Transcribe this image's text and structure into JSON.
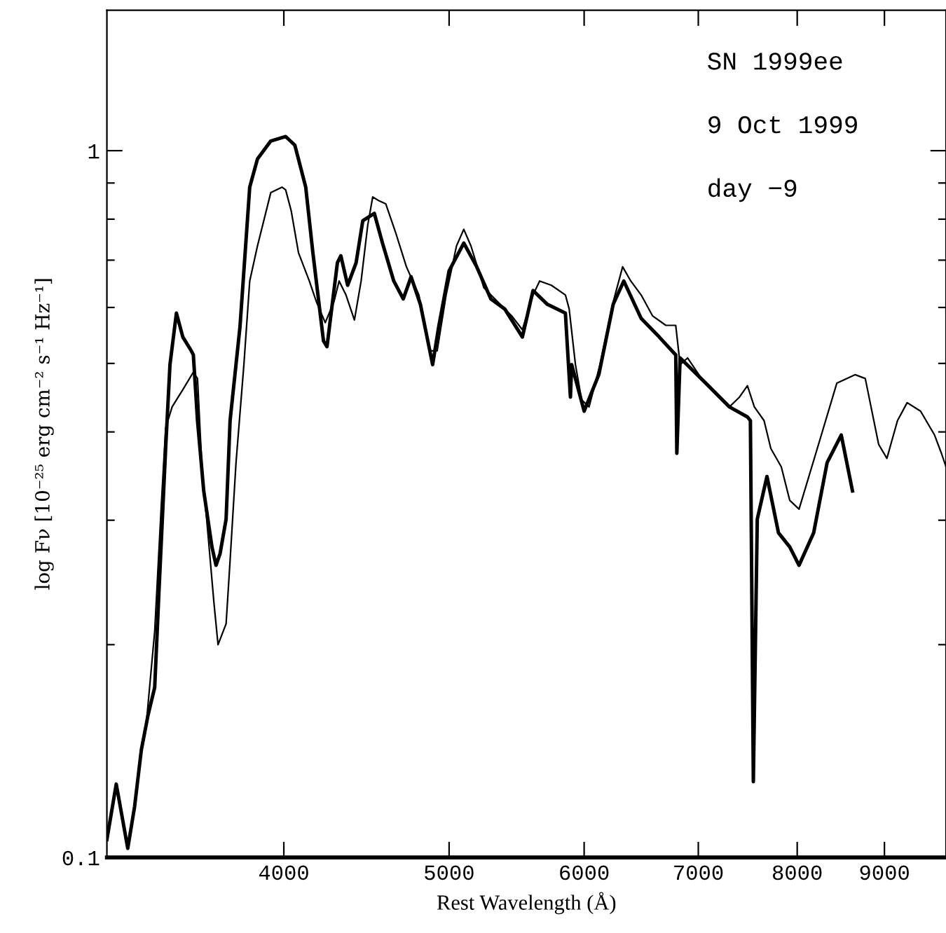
{
  "chart_data": {
    "type": "line",
    "xlabel": "Rest Wavelength (Å)",
    "ylabel": "log Fν [10⁻²⁵ erg cm⁻² s⁻¹ Hz⁻¹]",
    "annotations": [
      "SN 1999ee",
      "9 Oct 1999",
      "day −9"
    ],
    "log": "xy",
    "grid": false,
    "legend": false,
    "marker": "none",
    "line_style": "solid",
    "xlim": [
      3150,
      9780
    ],
    "ylim": [
      0.1,
      1.58
    ],
    "xticks": [
      4000,
      5000,
      6000,
      7000,
      8000,
      9000
    ],
    "yticks": [
      {
        "value": 0.1,
        "label": "0.1"
      },
      {
        "value": 0.2,
        "label": null
      },
      {
        "value": 0.3,
        "label": null
      },
      {
        "value": 0.4,
        "label": null
      },
      {
        "value": 0.5,
        "label": null
      },
      {
        "value": 0.6,
        "label": null
      },
      {
        "value": 0.7,
        "label": null
      },
      {
        "value": 0.8,
        "label": null
      },
      {
        "value": 0.9,
        "label": null
      },
      {
        "value": 1,
        "label": "1"
      }
    ],
    "series": [
      {
        "color": "#000000",
        "x": [
          3150,
          3190,
          3240,
          3270,
          3300,
          3330,
          3360,
          3380,
          3410,
          3430,
          3460,
          3490,
          3530,
          3540,
          3560,
          3590,
          3630,
          3650,
          3670,
          3700,
          3720,
          3770,
          3820,
          3860,
          3930,
          4010,
          4060,
          4120,
          4160,
          4220,
          4240,
          4300,
          4320,
          4360,
          4410,
          4450,
          4520,
          4570,
          4640,
          4700,
          4750,
          4810,
          4890,
          4930,
          5000,
          5100,
          5190,
          5290,
          5390,
          5520,
          5600,
          5710,
          5850,
          5890,
          5900,
          6000,
          6120,
          6240,
          6330,
          6480,
          6640,
          6790,
          6800,
          6830,
          7070,
          7300,
          7480,
          7510,
          7540,
          7580,
          7680,
          7800,
          7920,
          8020,
          8180,
          8330,
          8490,
          8620
        ],
        "values": [
          0.106,
          0.127,
          0.103,
          0.118,
          0.142,
          0.159,
          0.174,
          0.24,
          0.379,
          0.498,
          0.589,
          0.545,
          0.521,
          0.514,
          0.415,
          0.33,
          0.275,
          0.259,
          0.269,
          0.301,
          0.415,
          0.563,
          0.888,
          0.973,
          1.032,
          1.047,
          1.018,
          0.888,
          0.717,
          0.538,
          0.528,
          0.694,
          0.71,
          0.645,
          0.694,
          0.796,
          0.815,
          0.74,
          0.654,
          0.617,
          0.663,
          0.606,
          0.498,
          0.563,
          0.676,
          0.74,
          0.685,
          0.617,
          0.597,
          0.545,
          0.634,
          0.606,
          0.589,
          0.448,
          0.498,
          0.428,
          0.482,
          0.606,
          0.654,
          0.579,
          0.545,
          0.514,
          0.373,
          0.509,
          0.469,
          0.434,
          0.42,
          0.415,
          0.128,
          0.301,
          0.346,
          0.288,
          0.275,
          0.259,
          0.288,
          0.362,
          0.396,
          0.33
        ]
      },
      {
        "color": "#000000",
        "x": [
          3320,
          3360,
          3390,
          3410,
          3440,
          3490,
          3540,
          3560,
          3580,
          3610,
          3640,
          3660,
          3700,
          3720,
          3750,
          3790,
          3820,
          3860,
          3930,
          3990,
          4010,
          4040,
          4080,
          4140,
          4180,
          4230,
          4280,
          4310,
          4350,
          4400,
          4440,
          4480,
          4510,
          4550,
          4590,
          4650,
          4720,
          4800,
          4870,
          4920,
          4980,
          5050,
          5100,
          5150,
          5240,
          5340,
          5440,
          5520,
          5600,
          5650,
          5740,
          5850,
          5880,
          5930,
          5980,
          6040,
          6130,
          6240,
          6320,
          6390,
          6480,
          6580,
          6700,
          6790,
          6830,
          6900,
          7030,
          7160,
          7300,
          7400,
          7480,
          7550,
          7650,
          7720,
          7830,
          7920,
          8020,
          8220,
          8440,
          8650,
          8770,
          8930,
          9030,
          9160,
          9280,
          9450,
          9630,
          9720,
          9780
        ],
        "values": [
          0.152,
          0.209,
          0.315,
          0.405,
          0.434,
          0.459,
          0.486,
          0.476,
          0.362,
          0.288,
          0.229,
          0.2,
          0.214,
          0.263,
          0.362,
          0.498,
          0.654,
          0.733,
          0.872,
          0.888,
          0.88,
          0.822,
          0.717,
          0.654,
          0.611,
          0.571,
          0.611,
          0.654,
          0.625,
          0.576,
          0.654,
          0.785,
          0.86,
          0.849,
          0.841,
          0.768,
          0.685,
          0.625,
          0.521,
          0.521,
          0.625,
          0.733,
          0.774,
          0.733,
          0.64,
          0.611,
          0.584,
          0.558,
          0.625,
          0.654,
          0.645,
          0.625,
          0.597,
          0.498,
          0.444,
          0.434,
          0.498,
          0.611,
          0.685,
          0.654,
          0.625,
          0.584,
          0.566,
          0.566,
          0.498,
          0.509,
          0.476,
          0.454,
          0.434,
          0.448,
          0.465,
          0.434,
          0.415,
          0.379,
          0.357,
          0.32,
          0.311,
          0.379,
          0.469,
          0.482,
          0.476,
          0.384,
          0.367,
          0.415,
          0.44,
          0.428,
          0.396,
          0.373,
          0.357
        ]
      }
    ]
  }
}
